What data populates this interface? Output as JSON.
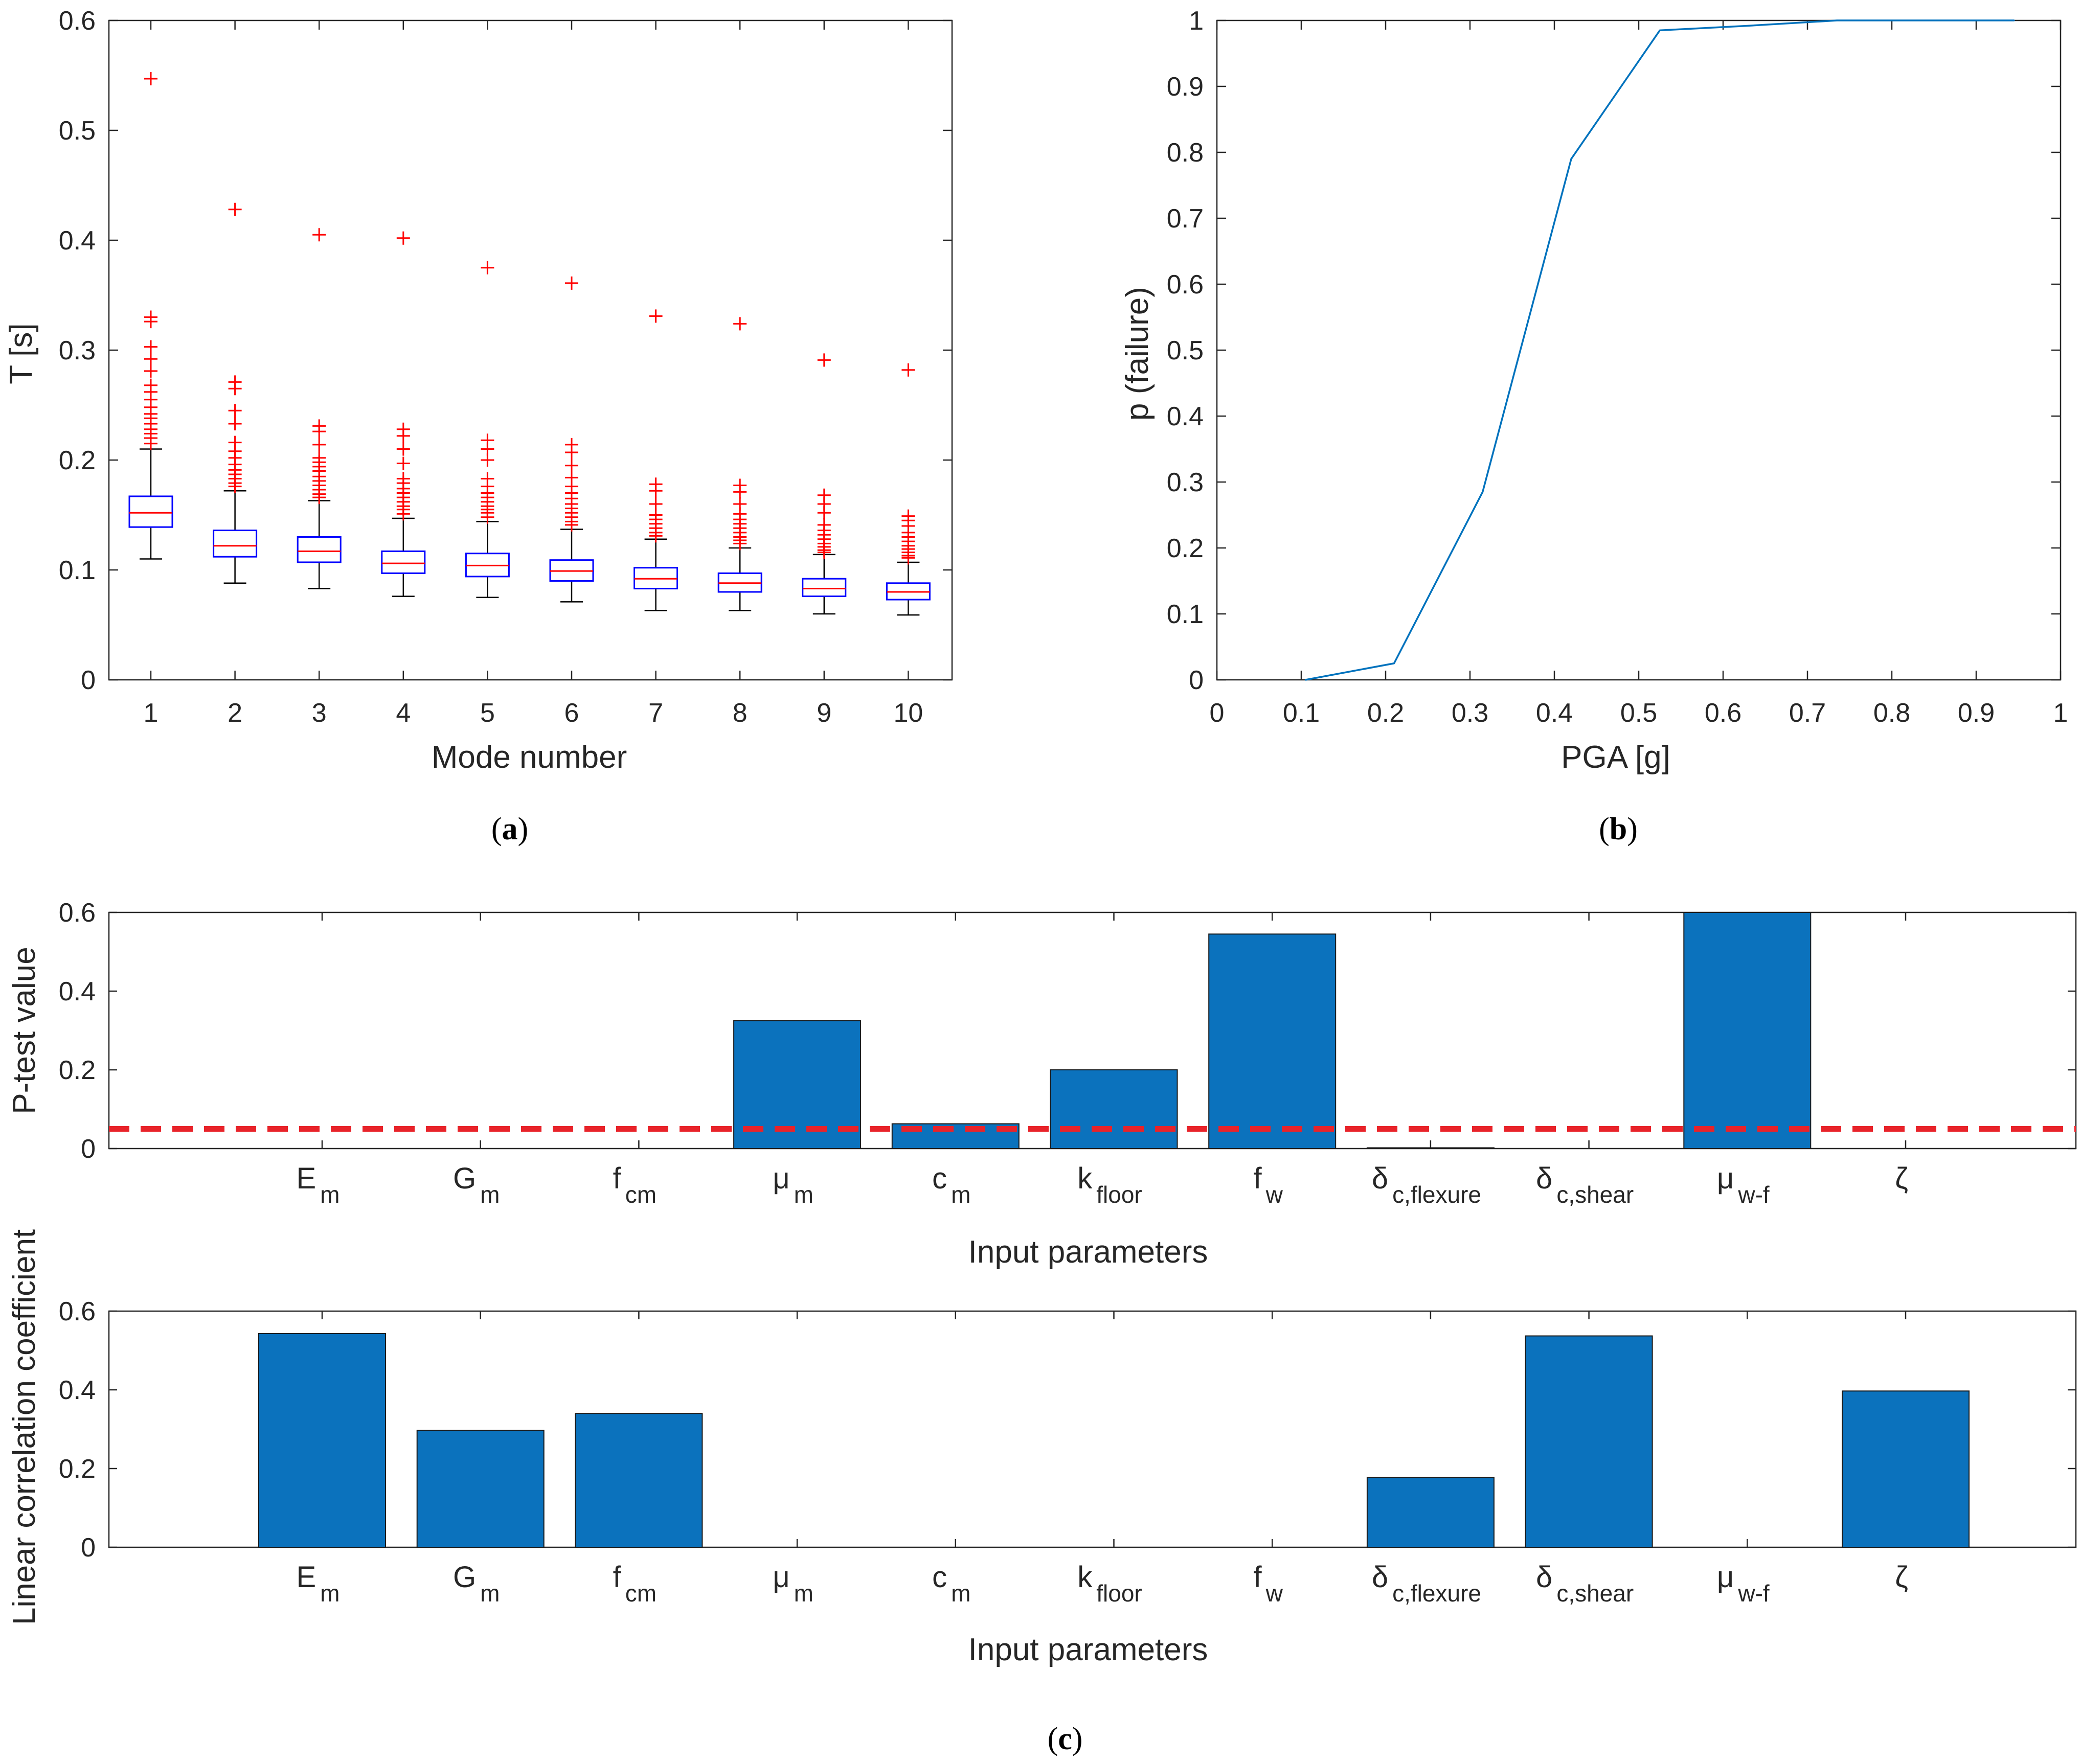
{
  "colors": {
    "box": "#0000ff",
    "median": "#ff0000",
    "outlier": "#ff0000",
    "whisker": "#000000",
    "line": "#0072bd",
    "bar": "#0b72bd",
    "threshold": "#e8232a",
    "axis": "#262626"
  },
  "panel_labels": {
    "a": {
      "open": "(",
      "letter": "a",
      "close": ")"
    },
    "b": {
      "open": "(",
      "letter": "b",
      "close": ")"
    },
    "c": {
      "open": "(",
      "letter": "c",
      "close": ")"
    }
  },
  "chart_data": [
    {
      "id": "a",
      "type": "box",
      "xlabel": "Mode number",
      "ylabel": "T [s]",
      "ylim": [
        0,
        0.6
      ],
      "yticks": [
        "0",
        "0.1",
        "0.2",
        "0.3",
        "0.4",
        "0.5",
        "0.6"
      ],
      "categories": [
        "1",
        "2",
        "3",
        "4",
        "5",
        "6",
        "7",
        "8",
        "9",
        "10"
      ],
      "boxes": [
        {
          "low": 0.11,
          "q1": 0.139,
          "median": 0.152,
          "q3": 0.167,
          "high": 0.21
        },
        {
          "low": 0.088,
          "q1": 0.112,
          "median": 0.122,
          "q3": 0.136,
          "high": 0.172
        },
        {
          "low": 0.083,
          "q1": 0.107,
          "median": 0.117,
          "q3": 0.13,
          "high": 0.163
        },
        {
          "low": 0.076,
          "q1": 0.097,
          "median": 0.106,
          "q3": 0.117,
          "high": 0.147
        },
        {
          "low": 0.075,
          "q1": 0.094,
          "median": 0.104,
          "q3": 0.115,
          "high": 0.144
        },
        {
          "low": 0.071,
          "q1": 0.09,
          "median": 0.099,
          "q3": 0.109,
          "high": 0.137
        },
        {
          "low": 0.063,
          "q1": 0.083,
          "median": 0.092,
          "q3": 0.102,
          "high": 0.128
        },
        {
          "low": 0.063,
          "q1": 0.08,
          "median": 0.088,
          "q3": 0.097,
          "high": 0.12
        },
        {
          "low": 0.06,
          "q1": 0.076,
          "median": 0.083,
          "q3": 0.092,
          "high": 0.114
        },
        {
          "low": 0.059,
          "q1": 0.073,
          "median": 0.08,
          "q3": 0.088,
          "high": 0.107
        }
      ],
      "outliers": [
        [
          0.547,
          0.33,
          0.326,
          0.303,
          0.292,
          0.281,
          0.268,
          0.262,
          0.255,
          0.248,
          0.242,
          0.238,
          0.233,
          0.228,
          0.224,
          0.22,
          0.215
        ],
        [
          0.428,
          0.271,
          0.265,
          0.245,
          0.233,
          0.216,
          0.208,
          0.202,
          0.196,
          0.191,
          0.187,
          0.183,
          0.179,
          0.176
        ],
        [
          0.405,
          0.231,
          0.226,
          0.214,
          0.202,
          0.198,
          0.194,
          0.19,
          0.185,
          0.181,
          0.177,
          0.173,
          0.169,
          0.166
        ],
        [
          0.402,
          0.228,
          0.222,
          0.21,
          0.197,
          0.183,
          0.179,
          0.174,
          0.17,
          0.166,
          0.162,
          0.158,
          0.155,
          0.151
        ],
        [
          0.375,
          0.218,
          0.21,
          0.2,
          0.183,
          0.176,
          0.17,
          0.166,
          0.162,
          0.158,
          0.155,
          0.152,
          0.148
        ],
        [
          0.361,
          0.214,
          0.207,
          0.195,
          0.184,
          0.176,
          0.17,
          0.165,
          0.16,
          0.156,
          0.152,
          0.148,
          0.144,
          0.141
        ],
        [
          0.331,
          0.178,
          0.172,
          0.16,
          0.15,
          0.146,
          0.142,
          0.138,
          0.134,
          0.131
        ],
        [
          0.324,
          0.177,
          0.171,
          0.16,
          0.151,
          0.146,
          0.142,
          0.138,
          0.134,
          0.13,
          0.127,
          0.124
        ],
        [
          0.291,
          0.168,
          0.16,
          0.152,
          0.141,
          0.136,
          0.132,
          0.128,
          0.124,
          0.121,
          0.118,
          0.116
        ],
        [
          0.282,
          0.149,
          0.145,
          0.14,
          0.134,
          0.13,
          0.126,
          0.122,
          0.119,
          0.116,
          0.113,
          0.111
        ]
      ]
    },
    {
      "id": "b",
      "type": "line",
      "xlabel": "PGA [g]",
      "ylabel": "p (failure)",
      "xlim": [
        0,
        1
      ],
      "ylim": [
        0,
        1
      ],
      "xticks": [
        "0",
        "0.1",
        "0.2",
        "0.3",
        "0.4",
        "0.5",
        "0.6",
        "0.7",
        "0.8",
        "0.9",
        "1"
      ],
      "yticks": [
        "0",
        "0.1",
        "0.2",
        "0.3",
        "0.4",
        "0.5",
        "0.6",
        "0.7",
        "0.8",
        "0.9",
        "1"
      ],
      "x": [
        0.105,
        0.21,
        0.315,
        0.42,
        0.525,
        0.63,
        0.735,
        0.84,
        0.945
      ],
      "y": [
        0.0,
        0.025,
        0.285,
        0.79,
        0.985,
        0.992,
        1.0,
        1.0,
        1.0
      ]
    },
    {
      "id": "c1",
      "type": "bar",
      "xlabel": "Input parameters",
      "ylabel": "P-test value",
      "ylim": [
        0,
        0.6
      ],
      "yticks": [
        "0",
        "0.2",
        "0.4",
        "0.6"
      ],
      "threshold": 0.05,
      "categories": [
        {
          "base": "E",
          "sub": "m"
        },
        {
          "base": "G",
          "sub": "m"
        },
        {
          "base": "f",
          "sub": "cm"
        },
        {
          "base": "μ",
          "sub": "m"
        },
        {
          "base": "c",
          "sub": "m"
        },
        {
          "base": "k",
          "sub": "floor"
        },
        {
          "base": "f",
          "sub": "w"
        },
        {
          "base": "δ",
          "sub": "c,flexure"
        },
        {
          "base": "δ",
          "sub": "c,shear"
        },
        {
          "base": "μ",
          "sub": "w-f"
        },
        {
          "base": "ζ",
          "sub": ""
        }
      ],
      "values": [
        0.0,
        0.0,
        0.0,
        0.325,
        0.063,
        0.2,
        0.545,
        0.002,
        0.0,
        0.6,
        0.0
      ]
    },
    {
      "id": "c2",
      "type": "bar",
      "xlabel": "Input parameters",
      "ylabel": "Linear correlation coefficient",
      "ylim": [
        0,
        0.6
      ],
      "yticks": [
        "0",
        "0.2",
        "0.4",
        "0.6"
      ],
      "categories": [
        {
          "base": "E",
          "sub": "m"
        },
        {
          "base": "G",
          "sub": "m"
        },
        {
          "base": "f",
          "sub": "cm"
        },
        {
          "base": "μ",
          "sub": "m"
        },
        {
          "base": "c",
          "sub": "m"
        },
        {
          "base": "k",
          "sub": "floor"
        },
        {
          "base": "f",
          "sub": "w"
        },
        {
          "base": "δ",
          "sub": "c,flexure"
        },
        {
          "base": "δ",
          "sub": "c,shear"
        },
        {
          "base": "μ",
          "sub": "w-f"
        },
        {
          "base": "ζ",
          "sub": ""
        }
      ],
      "values": [
        0.543,
        0.297,
        0.34,
        0.0,
        0.0,
        0.0,
        0.0,
        0.177,
        0.537,
        0.0,
        0.397
      ]
    }
  ]
}
